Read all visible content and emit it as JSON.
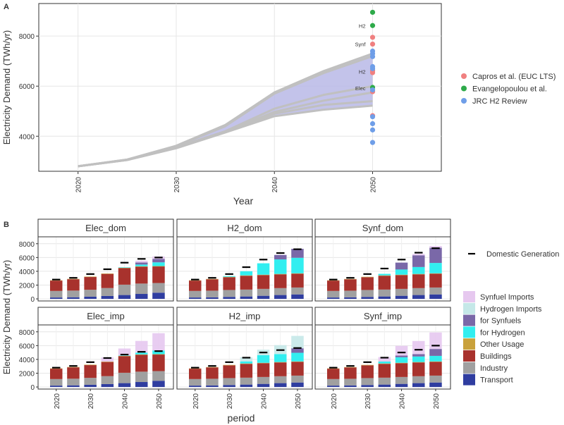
{
  "panel_labels": {
    "a": "A",
    "b": "B"
  },
  "colors": {
    "band": "#b8b8e6",
    "line": "#c0c0c0",
    "capros": "#f08080",
    "evang": "#2eaa4a",
    "jrc": "#6f9ee8",
    "Transport": "#2f3da0",
    "Industry": "#a0a0a0",
    "Buildings": "#a8322d",
    "Other Usage": "#c9a13b",
    "for Hydrogen": "#32eef0",
    "for Synfuels": "#7a68a8",
    "Hydrogen Imports": "#c5e8e8",
    "Synfuel Imports": "#e6c8ef"
  },
  "chart_data": [
    {
      "type": "line",
      "panel": "A",
      "xlabel": "Year",
      "ylabel": "Electricity Demand (TWh/yr)",
      "xlim": [
        2016,
        2057
      ],
      "ylim": [
        2600,
        9300
      ],
      "xticks": [
        "2020",
        "2030",
        "2040",
        "2050"
      ],
      "yticks": [
        "4000",
        "6000",
        "8000"
      ],
      "grid": true,
      "x": [
        2020,
        2025,
        2030,
        2035,
        2040,
        2045,
        2050
      ],
      "band": {
        "upper": [
          2800,
          3070,
          3620,
          4450,
          5750,
          6600,
          7300
        ],
        "lower": [
          2800,
          3050,
          3520,
          4150,
          4800,
          5060,
          5220
        ]
      },
      "series": [
        {
          "values": [
            2800,
            3070,
            3620,
            4450,
            5750,
            6600,
            7300
          ]
        },
        {
          "values": [
            2800,
            3065,
            3600,
            4400,
            5700,
            6520,
            7200
          ]
        },
        {
          "values": [
            2800,
            3060,
            3560,
            4200,
            5100,
            5650,
            6000
          ]
        },
        {
          "values": [
            2800,
            3055,
            3545,
            4180,
            4970,
            5420,
            5750
          ]
        },
        {
          "values": [
            2800,
            3050,
            3530,
            4160,
            4900,
            5250,
            5400
          ]
        },
        {
          "values": [
            2800,
            3050,
            3520,
            4150,
            4800,
            5060,
            5220
          ]
        }
      ],
      "legend": {
        "position": "right",
        "entries": [
          {
            "name": "Capros et al. (EUC LTS)",
            "color": "capros"
          },
          {
            "name": "Evangelopoulou et al.",
            "color": "evang"
          },
          {
            "name": "JRC H2 Review",
            "color": "jrc"
          }
        ]
      },
      "points": [
        {
          "source": "capros",
          "y": 7950
        },
        {
          "source": "capros",
          "y": 7680
        },
        {
          "source": "capros",
          "y": 6620
        },
        {
          "source": "capros",
          "y": 6540
        },
        {
          "source": "capros",
          "y": 5780
        },
        {
          "source": "capros",
          "y": 4820
        },
        {
          "source": "evang",
          "y": 8950
        },
        {
          "source": "evang",
          "y": 8420
        },
        {
          "source": "evang",
          "y": 5950
        },
        {
          "source": "jrc",
          "y": 7400
        },
        {
          "source": "jrc",
          "y": 7300
        },
        {
          "source": "jrc",
          "y": 7180
        },
        {
          "source": "jrc",
          "y": 6780
        },
        {
          "source": "jrc",
          "y": 6700
        },
        {
          "source": "jrc",
          "y": 5850
        },
        {
          "source": "jrc",
          "y": 4780
        },
        {
          "source": "jrc",
          "y": 4500
        },
        {
          "source": "jrc",
          "y": 4250
        },
        {
          "source": "jrc",
          "y": 3750
        }
      ],
      "annotations": [
        {
          "text": "H2",
          "y": 8420
        },
        {
          "text": "Synf",
          "y": 7680
        },
        {
          "text": "H2",
          "y": 6580
        },
        {
          "text": "Elec",
          "y": 5920
        }
      ]
    },
    {
      "type": "bar",
      "panel": "B",
      "stacked": true,
      "facets": [
        "Elec_dom",
        "H2_dom",
        "Synf_dom",
        "Elec_imp",
        "H2_imp",
        "Synf_imp"
      ],
      "xlabel": "period",
      "ylabel": "Electricity Demand (TWh/yr)",
      "ylim": [
        -300,
        9000
      ],
      "yticks": [
        "0",
        "2000",
        "4000",
        "6000",
        "8000"
      ],
      "x": [
        2020,
        2025,
        2030,
        2035,
        2040,
        2045,
        2050
      ],
      "xticks": [
        "2020",
        "2030",
        "2040",
        "2050"
      ],
      "grid": true,
      "legend_extra": "Domestic Generation",
      "legend_entries": [
        "Synfuel Imports",
        "Hydrogen Imports",
        "for Synfuels",
        "for Hydrogen",
        "Other Usage",
        "Buildings",
        "Industry",
        "Transport"
      ],
      "series": [
        {
          "name": "Transport",
          "values": [
            [
              200,
              240,
              320,
              420,
              560,
              720,
              900
            ],
            [
              200,
              230,
              290,
              350,
              450,
              560,
              650
            ],
            [
              200,
              230,
              290,
              350,
              450,
              560,
              650
            ],
            [
              200,
              240,
              320,
              420,
              560,
              720,
              900
            ],
            [
              200,
              230,
              290,
              350,
              450,
              560,
              650
            ],
            [
              200,
              230,
              290,
              350,
              450,
              560,
              650
            ]
          ]
        },
        {
          "name": "Industry",
          "values": [
            [
              950,
              960,
              1000,
              1150,
              1500,
              1500,
              1400
            ],
            [
              950,
              960,
              1000,
              1000,
              1000,
              1000,
              1000
            ],
            [
              950,
              960,
              1000,
              1000,
              1000,
              1000,
              1000
            ],
            [
              950,
              960,
              1000,
              1150,
              1500,
              1500,
              1400
            ],
            [
              950,
              960,
              1000,
              1000,
              1000,
              1000,
              1000
            ],
            [
              950,
              960,
              1000,
              1000,
              1000,
              1000,
              1000
            ]
          ]
        },
        {
          "name": "Buildings",
          "values": [
            [
              1500,
              1650,
              1850,
              2050,
              2400,
              2450,
              2400
            ],
            [
              1500,
              1650,
              1850,
              2000,
              2000,
              2000,
              2000
            ],
            [
              1500,
              1650,
              1850,
              2000,
              2000,
              2000,
              2000
            ],
            [
              1500,
              1650,
              1850,
              2050,
              2400,
              2450,
              2400
            ],
            [
              1500,
              1650,
              1850,
              2000,
              2000,
              2000,
              2000
            ],
            [
              1500,
              1650,
              1850,
              2000,
              2000,
              2000,
              2000
            ]
          ]
        },
        {
          "name": "Other Usage",
          "values": [
            [
              50,
              50,
              60,
              60,
              60,
              60,
              60
            ],
            [
              50,
              50,
              60,
              60,
              60,
              60,
              60
            ],
            [
              50,
              50,
              60,
              60,
              60,
              60,
              60
            ],
            [
              50,
              50,
              60,
              60,
              60,
              60,
              60
            ],
            [
              50,
              50,
              60,
              60,
              60,
              60,
              60
            ],
            [
              50,
              50,
              60,
              60,
              60,
              60,
              60
            ]
          ]
        },
        {
          "name": "for Hydrogen",
          "values": [
            [
              0,
              0,
              0,
              0,
              60,
              250,
              540
            ],
            [
              0,
              0,
              100,
              600,
              1650,
              2100,
              2250
            ],
            [
              0,
              0,
              0,
              220,
              750,
              1000,
              1500
            ],
            [
              0,
              0,
              0,
              0,
              60,
              250,
              540
            ],
            [
              0,
              0,
              0,
              300,
              1100,
              1150,
              1250
            ],
            [
              0,
              0,
              0,
              280,
              800,
              800,
              800
            ]
          ]
        },
        {
          "name": "for Synfuels",
          "values": [
            [
              0,
              0,
              0,
              0,
              0,
              300,
              500
            ],
            [
              0,
              0,
              0,
              0,
              0,
              650,
              1300
            ],
            [
              0,
              0,
              0,
              0,
              1000,
              1700,
              2200
            ],
            [
              0,
              0,
              0,
              0,
              0,
              0,
              0
            ],
            [
              0,
              0,
              0,
              0,
              0,
              0,
              650
            ],
            [
              0,
              0,
              0,
              0,
              250,
              350,
              1000
            ]
          ]
        },
        {
          "name": "Hydrogen Imports",
          "values": [
            [
              0,
              0,
              0,
              0,
              0,
              0,
              0
            ],
            [
              0,
              0,
              0,
              0,
              0,
              0,
              0
            ],
            [
              0,
              0,
              0,
              0,
              0,
              0,
              0
            ],
            [
              0,
              0,
              0,
              0,
              0,
              0,
              0
            ],
            [
              0,
              0,
              0,
              600,
              800,
              1300,
              1800
            ],
            [
              0,
              0,
              0,
              0,
              0,
              0,
              0
            ]
          ]
        },
        {
          "name": "Synfuel Imports",
          "values": [
            [
              0,
              0,
              0,
              0,
              0,
              250,
              350
            ],
            [
              0,
              0,
              0,
              0,
              0,
              0,
              0
            ],
            [
              0,
              0,
              0,
              0,
              0,
              200,
              250
            ],
            [
              0,
              0,
              0,
              600,
              1000,
              1700,
              2500
            ],
            [
              0,
              0,
              0,
              0,
              0,
              0,
              0
            ],
            [
              0,
              0,
              0,
              650,
              1400,
              1900,
              2400
            ]
          ]
        }
      ],
      "domestic_generation": [
        [
          2800,
          3050,
          3600,
          4300,
          5250,
          5800,
          6000
        ],
        [
          2800,
          3050,
          3600,
          4600,
          5700,
          6650,
          7200
        ],
        [
          2800,
          3050,
          3600,
          4400,
          5700,
          6700,
          7350
        ],
        [
          2800,
          3050,
          3600,
          4200,
          4700,
          5100,
          5200
        ],
        [
          2800,
          3050,
          3600,
          4250,
          5000,
          5350,
          5650
        ],
        [
          2800,
          3050,
          3600,
          4250,
          5000,
          5400,
          6000
        ]
      ]
    }
  ]
}
